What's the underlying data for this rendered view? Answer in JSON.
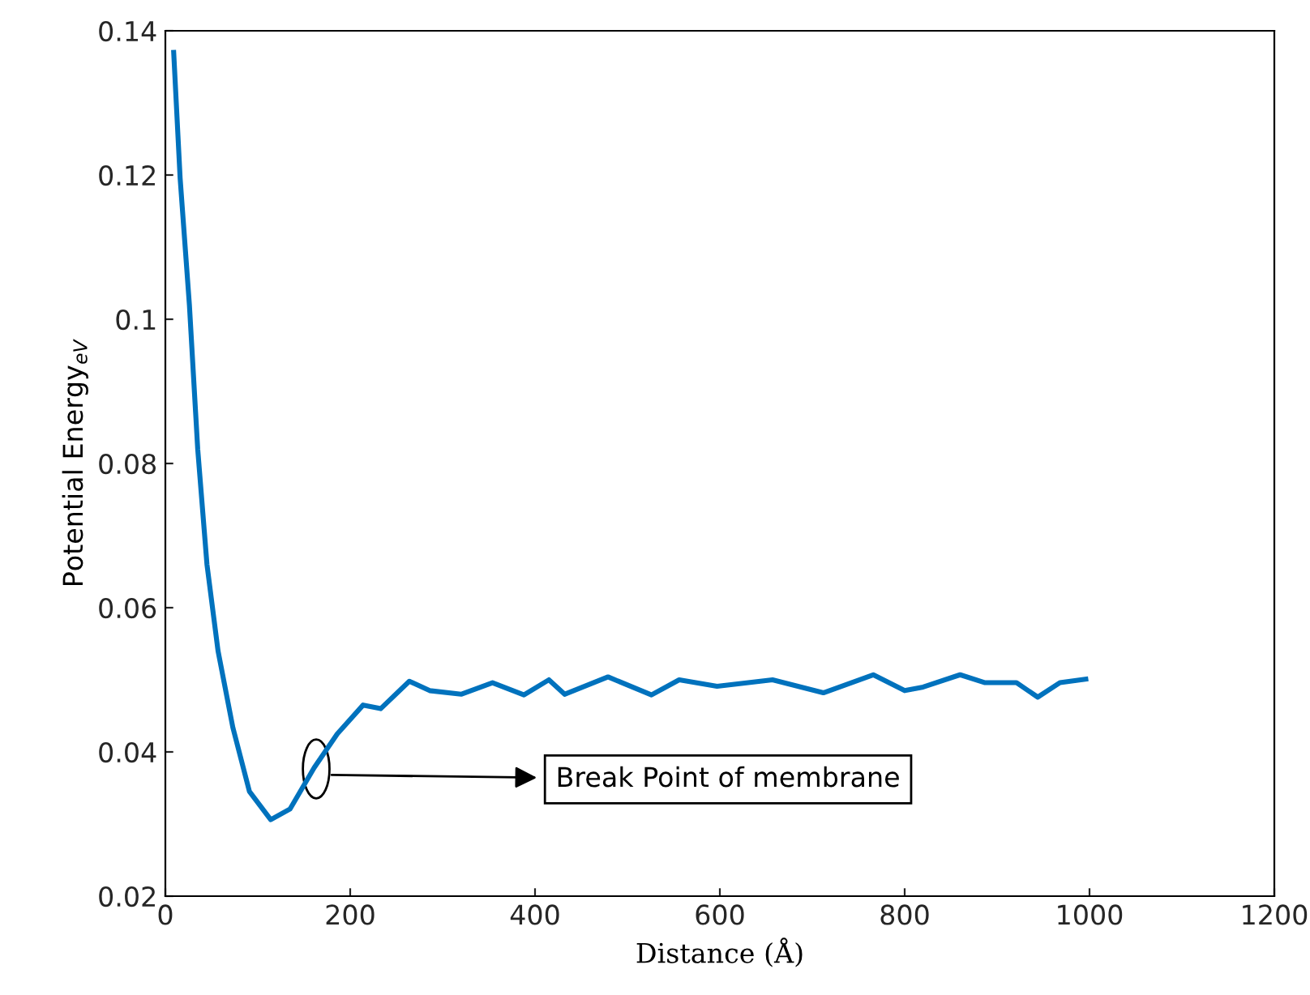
{
  "chart_data": {
    "type": "line",
    "xlabel": "Distance (Å)",
    "ylabel": "Potential Energy$_{eV}$",
    "x": [
      9,
      16,
      26,
      35,
      45,
      57,
      73,
      91,
      114,
      135,
      161,
      186,
      214,
      233,
      264,
      286,
      320,
      354,
      388,
      415,
      432,
      479,
      526,
      556,
      597,
      657,
      712,
      766,
      800,
      820,
      860,
      887,
      921,
      944,
      968,
      996
    ],
    "series": [
      {
        "color": "#0072bd",
        "values": [
          0.137,
          0.1195,
          0.102,
          0.082,
          0.066,
          0.054,
          0.0434,
          0.0345,
          0.0306,
          0.0321,
          0.0378,
          0.0425,
          0.0465,
          0.046,
          0.0498,
          0.0485,
          0.048,
          0.0496,
          0.0479,
          0.05,
          0.048,
          0.0504,
          0.0479,
          0.05,
          0.0491,
          0.05,
          0.0482,
          0.0507,
          0.0485,
          0.049,
          0.0507,
          0.0496,
          0.0496,
          0.0476,
          0.0496,
          0.0501
        ]
      }
    ],
    "xlim": [
      0,
      1200
    ],
    "xticks": [
      0,
      200,
      400,
      600,
      800,
      1000,
      1200
    ],
    "ylim": [
      0.02,
      0.14
    ],
    "yticks": [
      {
        "value": 0.02,
        "label": "0.02"
      },
      {
        "value": 0.04,
        "label": "0.04"
      },
      {
        "value": 0.06,
        "label": "0.06"
      },
      {
        "value": 0.08,
        "label": "0.08"
      },
      {
        "value": 0.1,
        "label": "0.1"
      },
      {
        "value": 0.12,
        "label": "0.12"
      },
      {
        "value": 0.14,
        "label": "0.14"
      }
    ],
    "grid": false,
    "legend": false,
    "line_style": "solid",
    "marker": "none",
    "annotations": [
      "Break Point of membrane"
    ]
  }
}
